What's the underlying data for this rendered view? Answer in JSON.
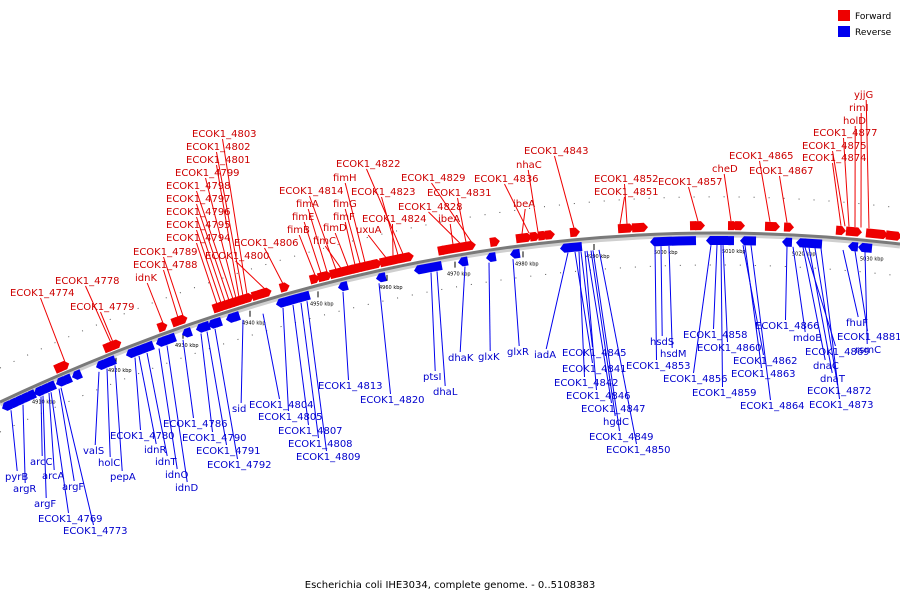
{
  "caption": "Escherichia coli IHE3034, complete genome. - 0..5108383",
  "legend": [
    {
      "label": "Forward",
      "color": "#ee0000"
    },
    {
      "label": "Reverse",
      "color": "#0000ee"
    }
  ],
  "ticks": [
    "4910 kbp",
    "4920 kbp",
    "4930 kbp",
    "4940 kbp",
    "4950 kbp",
    "4960 kbp",
    "4970 kbp",
    "4980 kbp",
    "4990 kbp",
    "5000 kbp",
    "5010 kbp",
    "5020 kbp",
    "5030 kbp"
  ],
  "forward_labels": [
    "ECOK1_4774",
    "ECOK1_4778",
    "ECOK1_4779",
    "idnK",
    "ECOK1_4788",
    "ECOK1_4789",
    "ECOK1_4794",
    "ECOK1_4795",
    "ECOK1_4796",
    "ECOK1_4797",
    "ECOK1_4798",
    "ECOK1_4799",
    "ECOK1_4801",
    "ECOK1_4802",
    "ECOK1_4803",
    "ECOK1_4800",
    "ECOK1_4806",
    "fimB",
    "fimE",
    "fimA",
    "ECOK1_4814",
    "fimC",
    "fimD",
    "fimF",
    "fimG",
    "fimH",
    "uxuA",
    "ECOK1_4824",
    "ECOK1_4823",
    "ECOK1_4822",
    "ibeA",
    "ECOK1_4828",
    "ECOK1_4831",
    "ECOK1_4829",
    "ibeA",
    "ECOK1_4836",
    "nhaC",
    "ECOK1_4843",
    "ECOK1_4851",
    "ECOK1_4852",
    "ECOK1_4857",
    "cheD",
    "ECOK1_4865",
    "ECOK1_4867",
    "ECOK1_4874",
    "ECOK1_4875",
    "ECOK1_4877",
    "holD",
    "rimI",
    "yjjG"
  ],
  "reverse_labels": [
    "pyrB",
    "argR",
    "arcC",
    "arcA",
    "argF",
    "argF",
    "ECOK1_4769",
    "ECOK1_4773",
    "valS",
    "holC",
    "pepA",
    "ECOK1_4780",
    "idnR",
    "idnT",
    "idnO",
    "idnD",
    "ECOK1_4786",
    "ECOK1_4790",
    "ECOK1_4791",
    "ECOK1_4792",
    "sid",
    "ECOK1_4804",
    "ECOK1_4805",
    "ECOK1_4807",
    "ECOK1_4808",
    "ECOK1_4809",
    "ECOK1_4813",
    "ECOK1_4820",
    "ptsI",
    "dhaL",
    "dhaK",
    "glxK",
    "glxR",
    "iadA",
    "ECOK1_4841",
    "ECOK1_4842",
    "ECOK1_4845",
    "ECOK1_4846",
    "ECOK1_4847",
    "hgdC",
    "ECOK1_4849",
    "ECOK1_4850",
    "ECOK1_4853",
    "hsdS",
    "hsdM",
    "ECOK1_4856",
    "ECOK1_4858",
    "ECOK1_4859",
    "ECOK1_4860",
    "ECOK1_4862",
    "ECOK1_4863",
    "ECOK1_4864",
    "ECOK1_4866",
    "mdoB",
    "dnaC",
    "ECOK1_4869",
    "dnaT",
    "ECOK1_4872",
    "ECOK1_4873",
    "fhuF",
    "ECOK1_4881",
    "rsmC"
  ]
}
